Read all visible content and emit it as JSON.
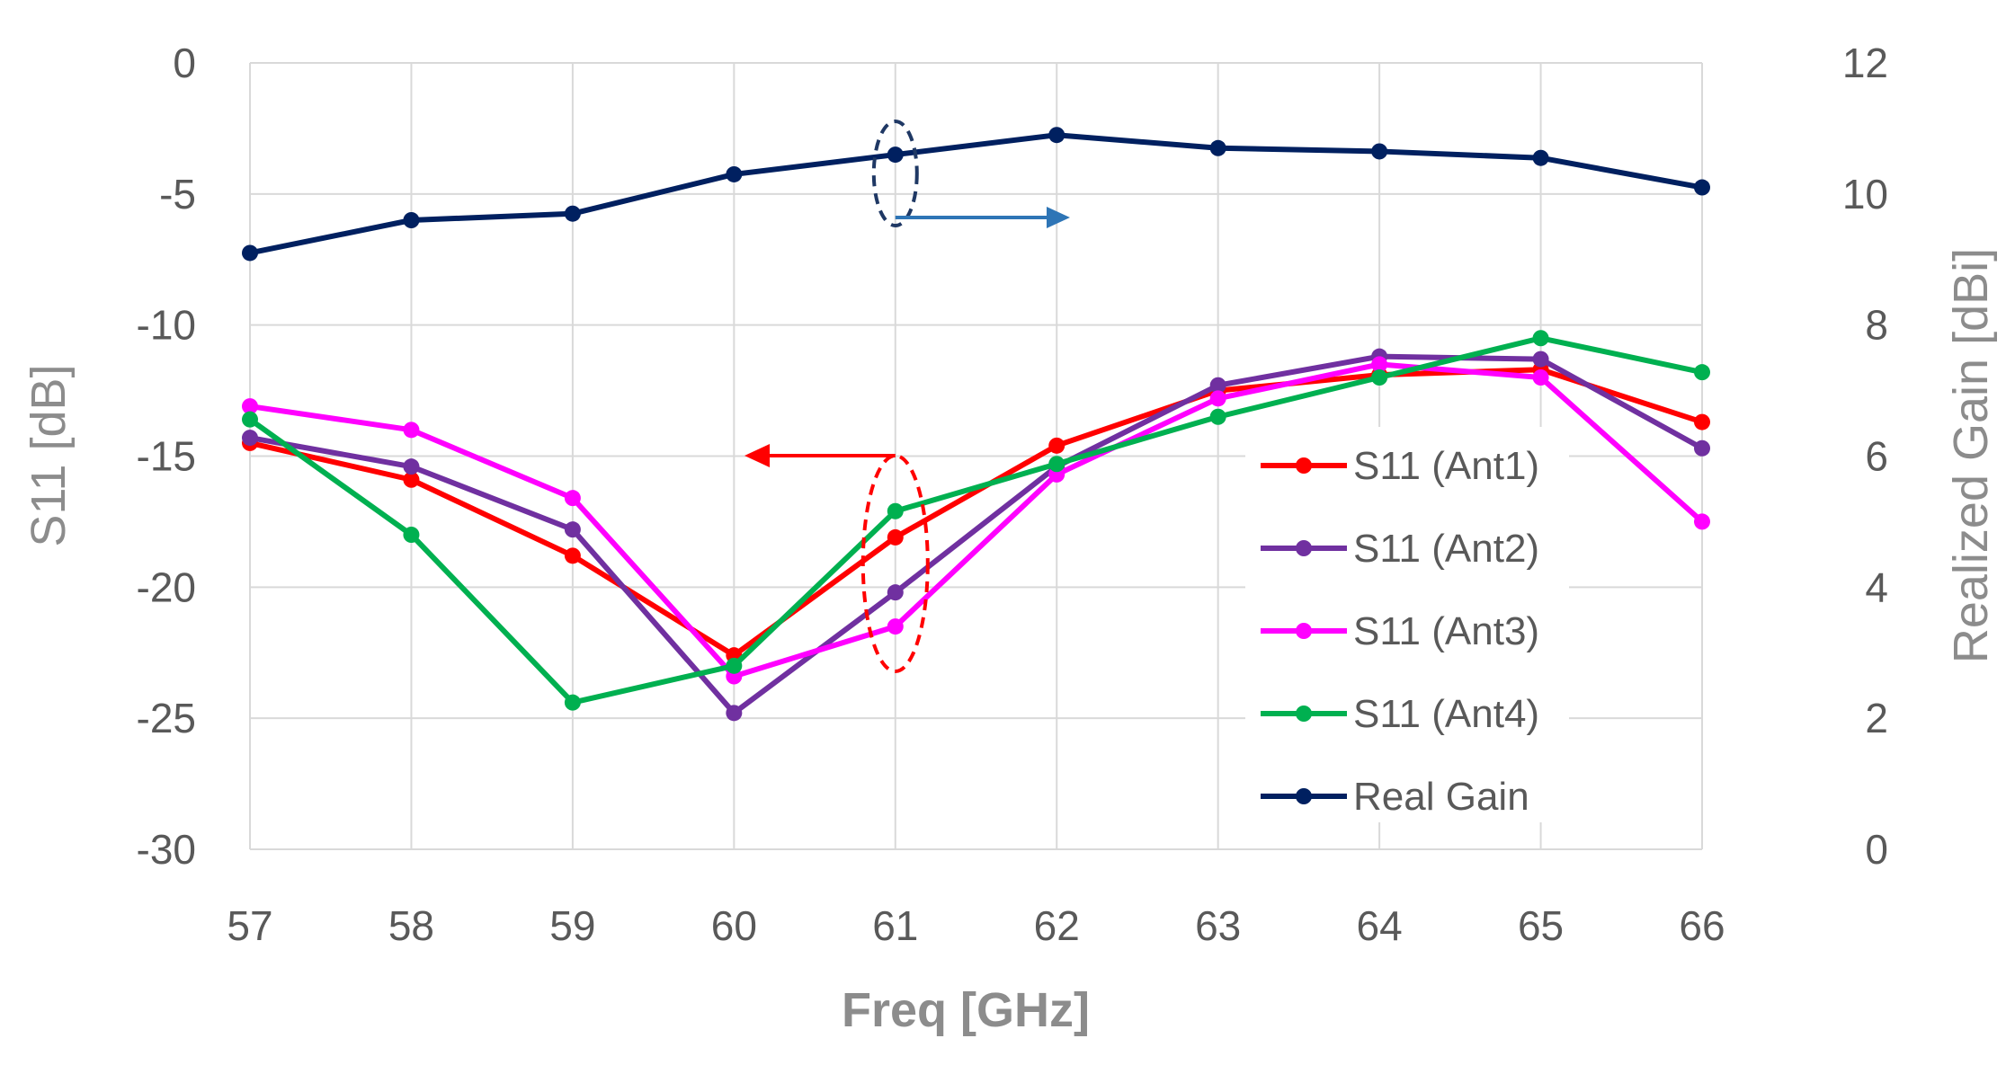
{
  "chart_data": {
    "type": "line",
    "title": "",
    "xlabel": "Freq [GHz]",
    "ylabel": "S11 [dB]",
    "y2label": "Realized Gain [dBi]",
    "x": [
      57,
      58,
      59,
      60,
      61,
      62,
      63,
      64,
      65,
      66
    ],
    "xticks": [
      "57",
      "58",
      "59",
      "60",
      "61",
      "62",
      "63",
      "64",
      "65",
      "66"
    ],
    "ylim": [
      -30,
      0
    ],
    "yticks": [
      "0",
      "-5",
      "-10",
      "-15",
      "-20",
      "-25",
      "-30"
    ],
    "y2lim": [
      0,
      12
    ],
    "y2ticks": [
      "12",
      "10",
      "8",
      "6",
      "4",
      "2",
      "0"
    ],
    "grid": true,
    "legend_position": "lower-right",
    "series": [
      {
        "name": "S11 (Ant1)",
        "axis": "left",
        "color": "#ff0000",
        "values": [
          -14.5,
          -15.9,
          -18.8,
          -22.6,
          -18.1,
          -14.6,
          -12.5,
          -11.9,
          -11.7,
          -13.7
        ]
      },
      {
        "name": "S11 (Ant2)",
        "axis": "left",
        "color": "#7030a0",
        "values": [
          -14.3,
          -15.4,
          -17.8,
          -24.8,
          -20.2,
          -15.4,
          -12.3,
          -11.2,
          -11.3,
          -14.7
        ]
      },
      {
        "name": "S11 (Ant3)",
        "axis": "left",
        "color": "#ff00ff",
        "values": [
          -13.1,
          -14.0,
          -16.6,
          -23.4,
          -21.5,
          -15.7,
          -12.8,
          -11.5,
          -12.0,
          -17.5
        ]
      },
      {
        "name": "S11 (Ant4)",
        "axis": "left",
        "color": "#00b050",
        "values": [
          -13.6,
          -18.0,
          -24.4,
          -23.0,
          -17.1,
          -15.3,
          -13.5,
          -12.0,
          -10.5,
          -11.8
        ]
      },
      {
        "name": "Real Gain",
        "axis": "right",
        "color": "#002060",
        "values": [
          9.1,
          9.6,
          9.7,
          10.3,
          10.6,
          10.9,
          10.7,
          10.65,
          10.55,
          10.1
        ]
      }
    ],
    "annotations": [
      {
        "type": "ellipse-arrow",
        "series": "S11 group",
        "points_to": "left axis",
        "at_x": 61,
        "color": "#ff0000"
      },
      {
        "type": "ellipse-arrow",
        "series": "Real Gain",
        "points_to": "right axis",
        "at_x": 61,
        "color": "#1f3864"
      }
    ]
  }
}
